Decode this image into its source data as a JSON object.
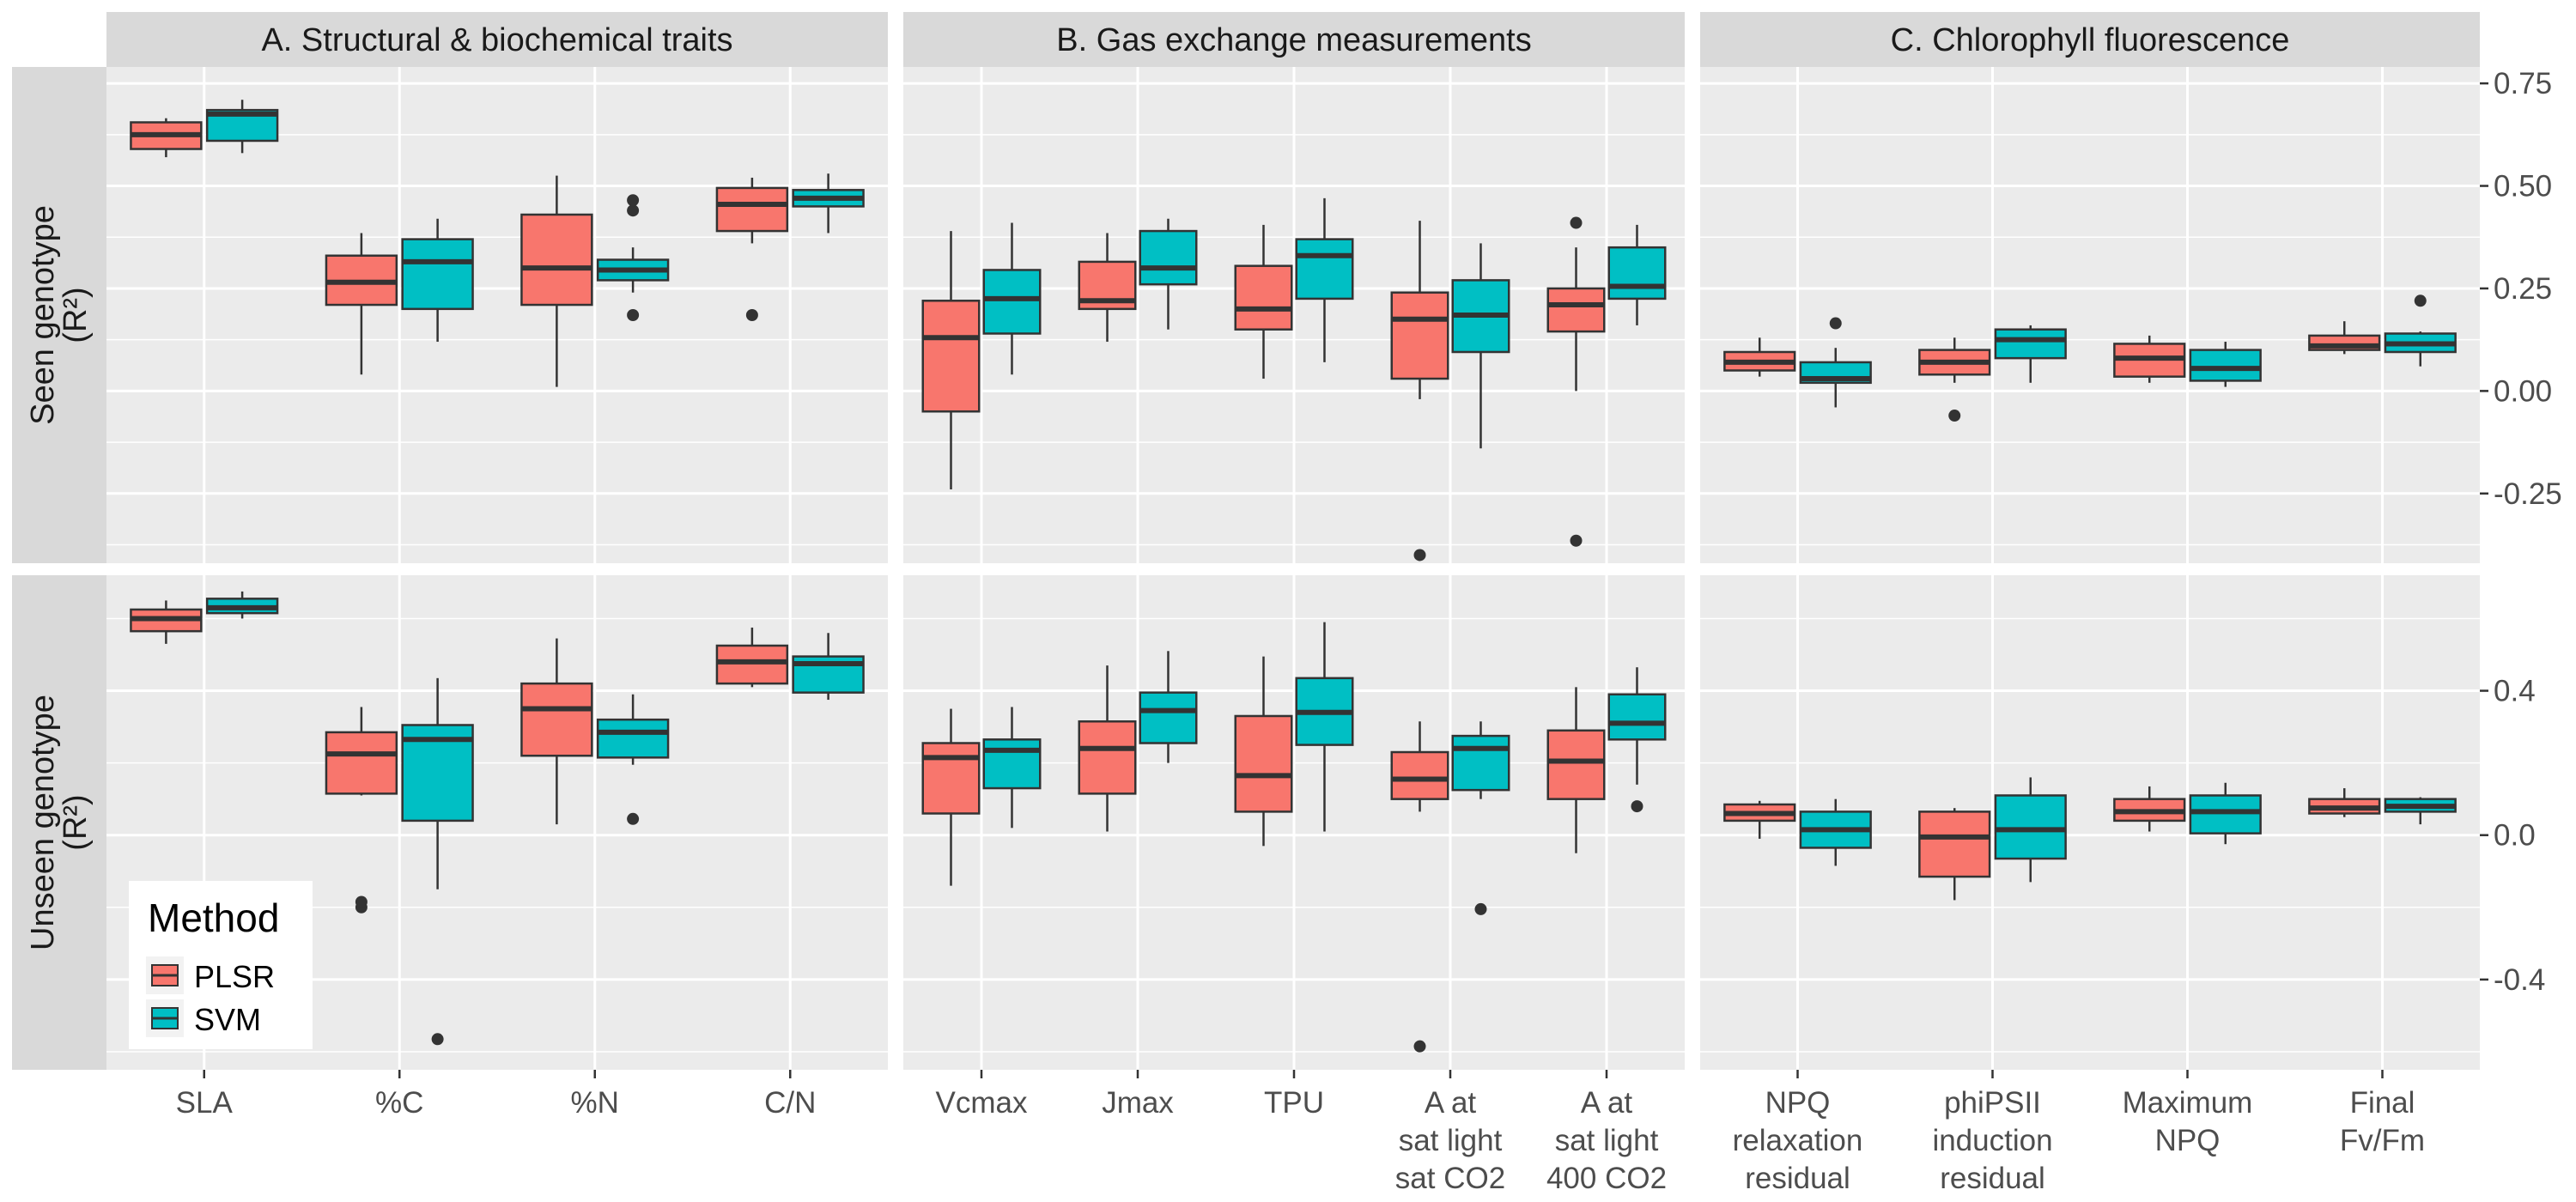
{
  "chart_data": {
    "type": "boxplot",
    "facet_columns": [
      {
        "label": "A. Structural & biochemical traits",
        "categories": [
          "SLA",
          "%C",
          "%N",
          "C/N"
        ]
      },
      {
        "label": "B. Gas exchange measurements",
        "categories": [
          "Vcmax",
          "Jmax",
          "TPU",
          "A at\nsat light\nsat CO2",
          "A at\nsat light\n400 CO2"
        ]
      },
      {
        "label": "C. Chlorophyll fluorescence",
        "categories": [
          "NPQ\nrelaxation\nresidual",
          "phiPSII\ninduction\nresidual",
          "Maximum\nNPQ",
          "Final\nFv/Fm"
        ]
      }
    ],
    "facet_rows": [
      {
        "label": "Seen genotype\n(R²)",
        "ylim": [
          -0.42,
          0.79
        ],
        "ticks": [
          -0.25,
          0.0,
          0.25,
          0.5,
          0.75
        ],
        "tick_labels": [
          "-0.25",
          "0.00",
          "0.25",
          "0.50",
          "0.75"
        ]
      },
      {
        "label": "Unseen genotype\n(R²)",
        "ylim": [
          -0.65,
          0.72
        ],
        "ticks": [
          -0.4,
          0.0,
          0.4
        ],
        "tick_labels": [
          "-0.4",
          "0.0",
          "0.4"
        ]
      }
    ],
    "legend": {
      "title": "Method",
      "position": "bottom-left",
      "entries": [
        {
          "name": "PLSR",
          "color": "#F8766D"
        },
        {
          "name": "SVM",
          "color": "#00BFC4"
        }
      ]
    },
    "colors": {
      "PLSR": "#F8766D",
      "SVM": "#00BFC4",
      "panel_bg": "#EBEBEB",
      "strip_bg": "#D9D9D9",
      "grid": "#FFFFFF"
    },
    "grid": true,
    "boxes": [
      [
        [
          {
            "PLSR": {
              "min": 0.57,
              "q1": 0.59,
              "median": 0.625,
              "q3": 0.655,
              "max": 0.665,
              "outliers": []
            },
            "SVM": {
              "min": 0.58,
              "q1": 0.61,
              "median": 0.675,
              "q3": 0.685,
              "max": 0.71,
              "outliers": []
            }
          },
          {
            "PLSR": {
              "min": 0.04,
              "q1": 0.21,
              "median": 0.265,
              "q3": 0.33,
              "max": 0.385,
              "outliers": []
            },
            "SVM": {
              "min": 0.12,
              "q1": 0.2,
              "median": 0.315,
              "q3": 0.37,
              "max": 0.42,
              "outliers": []
            }
          },
          {
            "PLSR": {
              "min": 0.01,
              "q1": 0.21,
              "median": 0.3,
              "q3": 0.43,
              "max": 0.525,
              "outliers": []
            },
            "SVM": {
              "min": 0.24,
              "q1": 0.27,
              "median": 0.295,
              "q3": 0.32,
              "max": 0.35,
              "outliers": [
                0.185,
                0.44,
                0.465
              ]
            }
          },
          {
            "PLSR": {
              "min": 0.36,
              "q1": 0.39,
              "median": 0.455,
              "q3": 0.495,
              "max": 0.52,
              "outliers": [
                0.185
              ]
            },
            "SVM": {
              "min": 0.385,
              "q1": 0.45,
              "median": 0.47,
              "q3": 0.49,
              "max": 0.53,
              "outliers": []
            }
          }
        ],
        [
          {
            "PLSR": {
              "min": -0.24,
              "q1": -0.05,
              "median": 0.13,
              "q3": 0.22,
              "max": 0.39,
              "outliers": []
            },
            "SVM": {
              "min": 0.04,
              "q1": 0.14,
              "median": 0.225,
              "q3": 0.295,
              "max": 0.41,
              "outliers": []
            }
          },
          {
            "PLSR": {
              "min": 0.12,
              "q1": 0.2,
              "median": 0.22,
              "q3": 0.315,
              "max": 0.385,
              "outliers": []
            },
            "SVM": {
              "min": 0.15,
              "q1": 0.26,
              "median": 0.3,
              "q3": 0.39,
              "max": 0.42,
              "outliers": []
            }
          },
          {
            "PLSR": {
              "min": 0.03,
              "q1": 0.15,
              "median": 0.2,
              "q3": 0.305,
              "max": 0.405,
              "outliers": []
            },
            "SVM": {
              "min": 0.07,
              "q1": 0.225,
              "median": 0.33,
              "q3": 0.37,
              "max": 0.47,
              "outliers": []
            }
          },
          {
            "PLSR": {
              "min": -0.02,
              "q1": 0.03,
              "median": 0.175,
              "q3": 0.24,
              "max": 0.415,
              "outliers": [
                -0.4
              ]
            },
            "SVM": {
              "min": -0.14,
              "q1": 0.095,
              "median": 0.185,
              "q3": 0.27,
              "max": 0.36,
              "outliers": []
            }
          },
          {
            "PLSR": {
              "min": 0.0,
              "q1": 0.145,
              "median": 0.21,
              "q3": 0.25,
              "max": 0.35,
              "outliers": [
                -0.365,
                0.41
              ]
            },
            "SVM": {
              "min": 0.16,
              "q1": 0.225,
              "median": 0.255,
              "q3": 0.35,
              "max": 0.405,
              "outliers": []
            }
          }
        ],
        [
          {
            "PLSR": {
              "min": 0.035,
              "q1": 0.05,
              "median": 0.07,
              "q3": 0.095,
              "max": 0.13,
              "outliers": []
            },
            "SVM": {
              "min": -0.04,
              "q1": 0.02,
              "median": 0.03,
              "q3": 0.07,
              "max": 0.105,
              "outliers": [
                0.165
              ]
            }
          },
          {
            "PLSR": {
              "min": 0.02,
              "q1": 0.04,
              "median": 0.07,
              "q3": 0.1,
              "max": 0.13,
              "outliers": [
                -0.06
              ]
            },
            "SVM": {
              "min": 0.02,
              "q1": 0.08,
              "median": 0.125,
              "q3": 0.15,
              "max": 0.16,
              "outliers": []
            }
          },
          {
            "PLSR": {
              "min": 0.02,
              "q1": 0.035,
              "median": 0.08,
              "q3": 0.115,
              "max": 0.135,
              "outliers": []
            },
            "SVM": {
              "min": 0.01,
              "q1": 0.025,
              "median": 0.055,
              "q3": 0.1,
              "max": 0.12,
              "outliers": []
            }
          },
          {
            "PLSR": {
              "min": 0.09,
              "q1": 0.1,
              "median": 0.11,
              "q3": 0.135,
              "max": 0.17,
              "outliers": []
            },
            "SVM": {
              "min": 0.06,
              "q1": 0.095,
              "median": 0.115,
              "q3": 0.14,
              "max": 0.145,
              "outliers": [
                0.22
              ]
            }
          }
        ]
      ],
      [
        [
          {
            "PLSR": {
              "min": 0.53,
              "q1": 0.565,
              "median": 0.6,
              "q3": 0.625,
              "max": 0.65,
              "outliers": []
            },
            "SVM": {
              "min": 0.6,
              "q1": 0.615,
              "median": 0.63,
              "q3": 0.655,
              "max": 0.675,
              "outliers": []
            }
          },
          {
            "PLSR": {
              "min": 0.11,
              "q1": 0.115,
              "median": 0.225,
              "q3": 0.285,
              "max": 0.355,
              "outliers": [
                -0.2,
                -0.185
              ]
            },
            "SVM": {
              "min": -0.15,
              "q1": 0.04,
              "median": 0.265,
              "q3": 0.305,
              "max": 0.435,
              "outliers": [
                -0.565
              ]
            }
          },
          {
            "PLSR": {
              "min": 0.03,
              "q1": 0.22,
              "median": 0.35,
              "q3": 0.42,
              "max": 0.545,
              "outliers": []
            },
            "SVM": {
              "min": 0.195,
              "q1": 0.215,
              "median": 0.285,
              "q3": 0.32,
              "max": 0.39,
              "outliers": [
                0.045
              ]
            }
          },
          {
            "PLSR": {
              "min": 0.41,
              "q1": 0.42,
              "median": 0.48,
              "q3": 0.525,
              "max": 0.575,
              "outliers": []
            },
            "SVM": {
              "min": 0.375,
              "q1": 0.395,
              "median": 0.475,
              "q3": 0.495,
              "max": 0.56,
              "outliers": []
            }
          }
        ],
        [
          {
            "PLSR": {
              "min": -0.14,
              "q1": 0.06,
              "median": 0.215,
              "q3": 0.255,
              "max": 0.35,
              "outliers": []
            },
            "SVM": {
              "min": 0.02,
              "q1": 0.13,
              "median": 0.235,
              "q3": 0.265,
              "max": 0.355,
              "outliers": []
            }
          },
          {
            "PLSR": {
              "min": 0.01,
              "q1": 0.115,
              "median": 0.24,
              "q3": 0.315,
              "max": 0.47,
              "outliers": []
            },
            "SVM": {
              "min": 0.2,
              "q1": 0.255,
              "median": 0.345,
              "q3": 0.395,
              "max": 0.51,
              "outliers": []
            }
          },
          {
            "PLSR": {
              "min": -0.03,
              "q1": 0.065,
              "median": 0.165,
              "q3": 0.33,
              "max": 0.495,
              "outliers": []
            },
            "SVM": {
              "min": 0.01,
              "q1": 0.25,
              "median": 0.34,
              "q3": 0.435,
              "max": 0.59,
              "outliers": []
            }
          },
          {
            "PLSR": {
              "min": 0.065,
              "q1": 0.1,
              "median": 0.155,
              "q3": 0.23,
              "max": 0.315,
              "outliers": [
                -0.585
              ]
            },
            "SVM": {
              "min": 0.1,
              "q1": 0.125,
              "median": 0.24,
              "q3": 0.275,
              "max": 0.315,
              "outliers": [
                -0.205
              ]
            }
          },
          {
            "PLSR": {
              "min": -0.05,
              "q1": 0.1,
              "median": 0.205,
              "q3": 0.29,
              "max": 0.41,
              "outliers": []
            },
            "SVM": {
              "min": 0.14,
              "q1": 0.265,
              "median": 0.31,
              "q3": 0.39,
              "max": 0.465,
              "outliers": [
                0.08
              ]
            }
          }
        ],
        [
          {
            "PLSR": {
              "min": -0.01,
              "q1": 0.04,
              "median": 0.06,
              "q3": 0.085,
              "max": 0.095,
              "outliers": []
            },
            "SVM": {
              "min": -0.085,
              "q1": -0.035,
              "median": 0.015,
              "q3": 0.065,
              "max": 0.1,
              "outliers": []
            }
          },
          {
            "PLSR": {
              "min": -0.18,
              "q1": -0.115,
              "median": -0.005,
              "q3": 0.065,
              "max": 0.075,
              "outliers": []
            },
            "SVM": {
              "min": -0.13,
              "q1": -0.065,
              "median": 0.015,
              "q3": 0.11,
              "max": 0.16,
              "outliers": []
            }
          },
          {
            "PLSR": {
              "min": 0.01,
              "q1": 0.04,
              "median": 0.065,
              "q3": 0.1,
              "max": 0.135,
              "outliers": []
            },
            "SVM": {
              "min": -0.025,
              "q1": 0.005,
              "median": 0.065,
              "q3": 0.11,
              "max": 0.145,
              "outliers": []
            }
          },
          {
            "PLSR": {
              "min": 0.05,
              "q1": 0.06,
              "median": 0.075,
              "q3": 0.1,
              "max": 0.13,
              "outliers": []
            },
            "SVM": {
              "min": 0.03,
              "q1": 0.065,
              "median": 0.08,
              "q3": 0.1,
              "max": 0.105,
              "outliers": []
            }
          }
        ]
      ]
    ]
  }
}
